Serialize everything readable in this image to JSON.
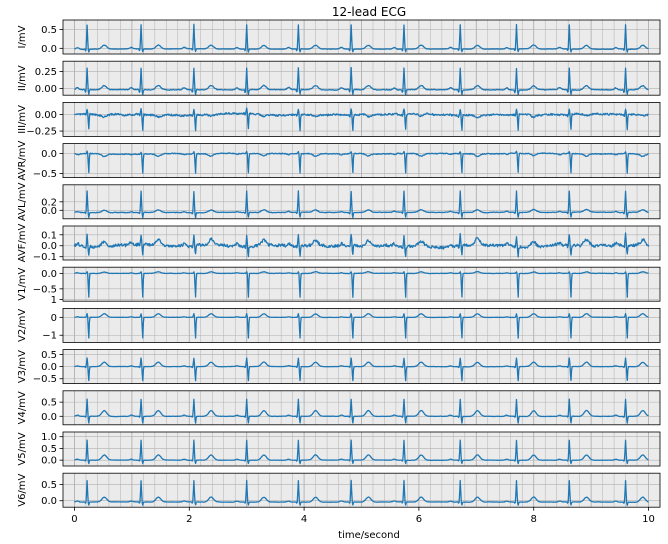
{
  "chart_data": {
    "type": "line",
    "title": "12-lead ECG",
    "xlabel": "time/second",
    "xlim": [
      -0.2,
      10.2
    ],
    "x_ticks": [
      0,
      2,
      4,
      6,
      8,
      10
    ],
    "grid": true,
    "line_color": "#1f77b4",
    "grid_color": "#b0b0b0",
    "panel_bg": "#ebebeb",
    "beat_times": [
      0.22,
      1.16,
      2.08,
      3.0,
      3.9,
      4.82,
      5.74,
      6.72,
      7.7,
      8.62,
      9.6
    ],
    "leads": [
      {
        "name": "I",
        "ylabel": "I/mV",
        "ylim": [
          -0.15,
          0.75
        ],
        "yticks": [
          0.0,
          0.5
        ],
        "ytick_labels": [
          "0.0",
          "0.5"
        ],
        "baseline": -0.02,
        "r_peak": 0.62,
        "q_dip": -0.06,
        "s_dip": -0.08,
        "t_wave": 0.1,
        "p_wave": 0.04,
        "noise": 0.01
      },
      {
        "name": "II",
        "ylabel": "II/mV",
        "ylim": [
          -0.1,
          0.4
        ],
        "yticks": [
          0.0,
          0.25
        ],
        "ytick_labels": [
          "0.00",
          "0.25"
        ],
        "baseline": -0.02,
        "r_peak": 0.3,
        "q_dip": -0.05,
        "s_dip": -0.07,
        "t_wave": 0.06,
        "p_wave": 0.03,
        "noise": 0.01
      },
      {
        "name": "III",
        "ylabel": "III/mV",
        "ylim": [
          -0.33,
          0.18
        ],
        "yticks": [
          0.0,
          -0.25
        ],
        "ytick_labels": [
          "0.00",
          "−0.25"
        ],
        "baseline": 0.0,
        "r_peak": 0.08,
        "q_dip": -0.03,
        "s_dip": -0.24,
        "t_wave": -0.03,
        "p_wave": 0.0,
        "noise": 0.025
      },
      {
        "name": "AVR",
        "ylabel": "AVR/mV",
        "ylim": [
          -0.6,
          0.25
        ],
        "yticks": [
          0.0,
          -0.5
        ],
        "ytick_labels": [
          "0.0",
          "−0.5"
        ],
        "baseline": 0.0,
        "r_peak": 0.05,
        "q_dip": 0.0,
        "s_dip": -0.5,
        "t_wave": -0.06,
        "p_wave": -0.02,
        "noise": 0.02
      },
      {
        "name": "AVL",
        "ylabel": "AVL/mV",
        "ylim": [
          -0.2,
          0.6
        ],
        "yticks": [
          0.0,
          0.2
        ],
        "ytick_labels": [
          "0.0",
          "0.2"
        ],
        "baseline": -0.05,
        "r_peak": 0.45,
        "q_dip": -0.04,
        "s_dip": -0.12,
        "t_wave": 0.06,
        "p_wave": 0.02,
        "noise": 0.012
      },
      {
        "name": "AVF",
        "ylabel": "AVF/mV",
        "ylim": [
          -0.13,
          0.18
        ],
        "yticks": [
          0.1,
          0.0,
          -0.1
        ],
        "ytick_labels": [
          "0.1",
          "0.0",
          "−0.1"
        ],
        "baseline": 0.0,
        "r_peak": 0.1,
        "q_dip": -0.02,
        "s_dip": -0.09,
        "t_wave": 0.05,
        "p_wave": 0.02,
        "noise": 0.025
      },
      {
        "name": "V1",
        "ylabel": "V1/mV",
        "ylim": [
          -0.9,
          0.2
        ],
        "yticks": [
          0.0,
          -0.5
        ],
        "ytick_labels": [
          "0.0",
          "−0.5"
        ],
        "baseline": 0.0,
        "r_peak": 0.05,
        "q_dip": 0.0,
        "s_dip": -0.8,
        "t_wave": 0.05,
        "p_wave": 0.02,
        "noise": 0.01
      },
      {
        "name": "V2",
        "ylabel": "V2/mV",
        "ylim": [
          -1.4,
          0.5
        ],
        "yticks": [
          1.0,
          0.0,
          -1.0
        ],
        "ytick_labels": [
          "1",
          "0",
          "−1"
        ],
        "baseline": 0.0,
        "r_peak": 0.2,
        "q_dip": 0.0,
        "s_dip": -1.2,
        "t_wave": 0.2,
        "p_wave": 0.03,
        "noise": 0.01
      },
      {
        "name": "V3",
        "ylabel": "V3/mV",
        "ylim": [
          -0.7,
          0.7
        ],
        "yticks": [
          0.5,
          0.0,
          -0.5
        ],
        "ytick_labels": [
          "0.5",
          "0.0",
          "−0.5"
        ],
        "baseline": 0.0,
        "r_peak": 0.35,
        "q_dip": -0.05,
        "s_dip": -0.6,
        "t_wave": 0.18,
        "p_wave": 0.03,
        "noise": 0.01
      },
      {
        "name": "V4",
        "ylabel": "V4/mV",
        "ylim": [
          -0.3,
          0.9
        ],
        "yticks": [
          0.5,
          0.0
        ],
        "ytick_labels": [
          "0.5",
          "0.0"
        ],
        "baseline": 0.0,
        "r_peak": 0.6,
        "q_dip": -0.05,
        "s_dip": -0.25,
        "t_wave": 0.2,
        "p_wave": 0.04,
        "noise": 0.01
      },
      {
        "name": "V5",
        "ylabel": "V5/mV",
        "ylim": [
          -0.25,
          1.2
        ],
        "yticks": [
          1.0,
          0.5,
          0.0
        ],
        "ytick_labels": [
          "1.0",
          "0.5",
          "0.0"
        ],
        "baseline": 0.0,
        "r_peak": 0.85,
        "q_dip": -0.05,
        "s_dip": -0.15,
        "t_wave": 0.22,
        "p_wave": 0.04,
        "noise": 0.01
      },
      {
        "name": "V6",
        "ylabel": "V6/mV",
        "ylim": [
          -0.2,
          0.85
        ],
        "yticks": [
          0.5,
          0.0
        ],
        "ytick_labels": [
          "0.5",
          "0.0"
        ],
        "baseline": -0.04,
        "r_peak": 0.62,
        "q_dip": -0.05,
        "s_dip": -0.1,
        "t_wave": 0.15,
        "p_wave": 0.03,
        "noise": 0.01
      }
    ]
  }
}
